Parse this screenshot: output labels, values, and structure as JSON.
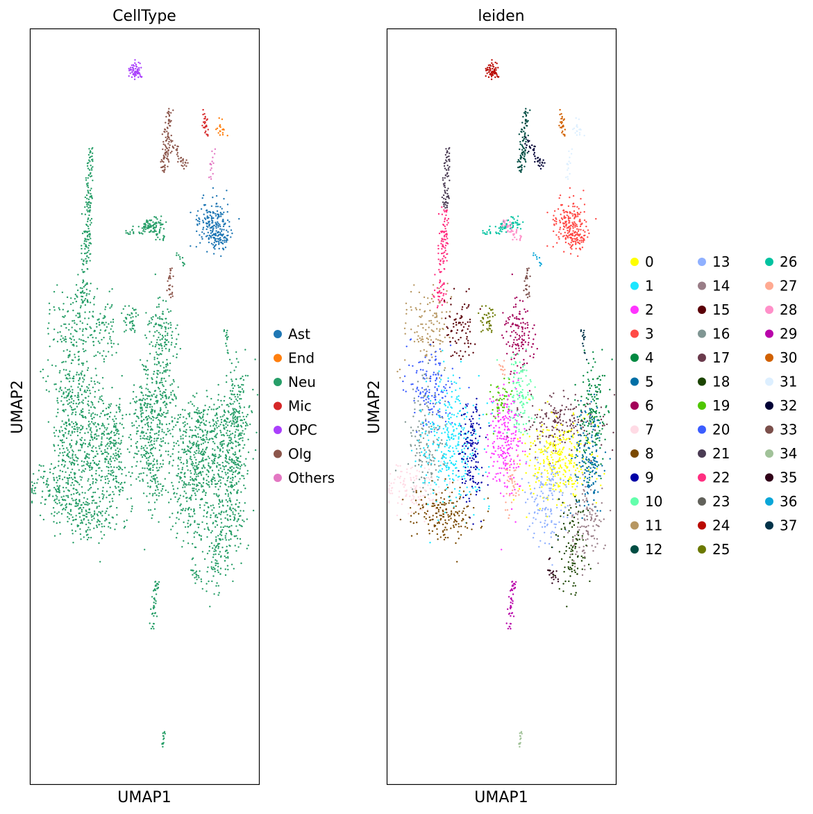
{
  "chart_data": [
    {
      "type": "scatter",
      "title": "CellType",
      "xlabel": "UMAP1",
      "ylabel": "UMAP2",
      "grid": false,
      "ticks": false,
      "legend_placement": "right",
      "series": [
        {
          "name": "Ast",
          "color": "#1f77b4"
        },
        {
          "name": "End",
          "color": "#ff7f0e"
        },
        {
          "name": "Neu",
          "color": "#279e68"
        },
        {
          "name": "Mic",
          "color": "#d62728"
        },
        {
          "name": "OPC",
          "color": "#aa40fc"
        },
        {
          "name": "Olg",
          "color": "#8c564b"
        },
        {
          "name": "Others",
          "color": "#e377c2"
        }
      ]
    },
    {
      "type": "scatter",
      "title": "leiden",
      "xlabel": "UMAP1",
      "ylabel": "UMAP2",
      "grid": false,
      "ticks": false,
      "legend_placement": "right",
      "series": [
        {
          "name": "0",
          "color": "#ffff00"
        },
        {
          "name": "1",
          "color": "#1ce6ff"
        },
        {
          "name": "2",
          "color": "#ff34ff"
        },
        {
          "name": "3",
          "color": "#ff4a46"
        },
        {
          "name": "4",
          "color": "#008941"
        },
        {
          "name": "5",
          "color": "#006fa6"
        },
        {
          "name": "6",
          "color": "#a30059"
        },
        {
          "name": "7",
          "color": "#ffdbe5"
        },
        {
          "name": "8",
          "color": "#7a4900"
        },
        {
          "name": "9",
          "color": "#0000a6"
        },
        {
          "name": "10",
          "color": "#63ffac"
        },
        {
          "name": "11",
          "color": "#b79762"
        },
        {
          "name": "12",
          "color": "#004d43"
        },
        {
          "name": "13",
          "color": "#8fb0ff"
        },
        {
          "name": "14",
          "color": "#997d87"
        },
        {
          "name": "15",
          "color": "#5a0007"
        },
        {
          "name": "16",
          "color": "#809693"
        },
        {
          "name": "17",
          "color": "#6a3a4c"
        },
        {
          "name": "18",
          "color": "#1b4400"
        },
        {
          "name": "19",
          "color": "#4fc601"
        },
        {
          "name": "20",
          "color": "#3b5dff"
        },
        {
          "name": "21",
          "color": "#4a3b53"
        },
        {
          "name": "22",
          "color": "#ff2f80"
        },
        {
          "name": "23",
          "color": "#61615a"
        },
        {
          "name": "24",
          "color": "#ba0900"
        },
        {
          "name": "25",
          "color": "#6b7900"
        },
        {
          "name": "26",
          "color": "#00c2a0"
        },
        {
          "name": "27",
          "color": "#ffaa92"
        },
        {
          "name": "28",
          "color": "#ff90c9"
        },
        {
          "name": "29",
          "color": "#b903aa"
        },
        {
          "name": "30",
          "color": "#d16100"
        },
        {
          "name": "31",
          "color": "#ddefff"
        },
        {
          "name": "32",
          "color": "#000035"
        },
        {
          "name": "33",
          "color": "#7b4f4b"
        },
        {
          "name": "34",
          "color": "#a1c299"
        },
        {
          "name": "35",
          "color": "#300018"
        },
        {
          "name": "36",
          "color": "#0aa6d8"
        },
        {
          "name": "37",
          "color": "#013349"
        }
      ]
    }
  ]
}
